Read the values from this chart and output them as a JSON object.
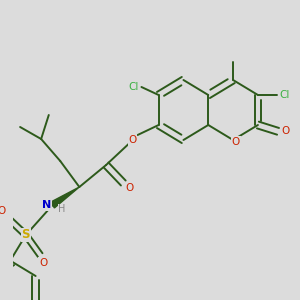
{
  "bg_color": "#dcdcdc",
  "bond_color": "#2d5a1b",
  "cl_color": "#3cb043",
  "o_color": "#cc2200",
  "n_color": "#0000cc",
  "s_color": "#ccaa00",
  "h_color": "#888888",
  "figsize": [
    3.0,
    3.0
  ],
  "dpi": 100,
  "xlim": [
    0,
    300
  ],
  "ylim": [
    0,
    300
  ]
}
